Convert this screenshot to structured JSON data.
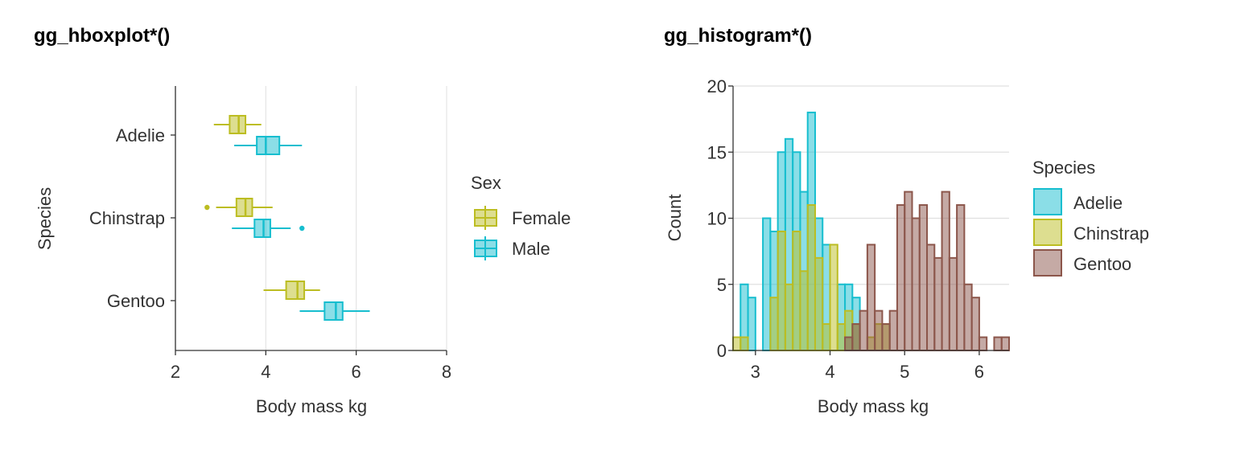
{
  "chart_data": [
    {
      "type": "boxplot",
      "title": "gg_hboxplot*()",
      "orientation": "horizontal",
      "xlabel": "Body mass kg",
      "ylabel": "Species",
      "xlim": [
        2,
        8
      ],
      "xticks": [
        "2",
        "4",
        "6",
        "8"
      ],
      "categories": [
        "Adelie",
        "Chinstrap",
        "Gentoo"
      ],
      "legend": {
        "title": "Sex",
        "placement": "right",
        "entries": [
          "Female",
          "Male"
        ]
      },
      "series": [
        {
          "name": "Female",
          "color": "#bcbd22",
          "boxes": [
            {
              "category": "Adelie",
              "min": 2.85,
              "q1": 3.2,
              "median": 3.4,
              "q3": 3.55,
              "max": 3.9,
              "outliers": []
            },
            {
              "category": "Chinstrap",
              "min": 2.9,
              "q1": 3.35,
              "median": 3.55,
              "q3": 3.7,
              "max": 4.15,
              "outliers": [
                2.7
              ]
            },
            {
              "category": "Gentoo",
              "min": 3.95,
              "q1": 4.45,
              "median": 4.7,
              "q3": 4.85,
              "max": 5.2,
              "outliers": []
            }
          ]
        },
        {
          "name": "Male",
          "color": "#17becf",
          "boxes": [
            {
              "category": "Adelie",
              "min": 3.3,
              "q1": 3.8,
              "median": 4.0,
              "q3": 4.3,
              "max": 4.8,
              "outliers": []
            },
            {
              "category": "Chinstrap",
              "min": 3.25,
              "q1": 3.75,
              "median": 3.95,
              "q3": 4.1,
              "max": 4.55,
              "outliers": [
                4.8
              ]
            },
            {
              "category": "Gentoo",
              "min": 4.75,
              "q1": 5.3,
              "median": 5.55,
              "q3": 5.7,
              "max": 6.3,
              "outliers": []
            }
          ]
        }
      ]
    },
    {
      "type": "histogram",
      "title": "gg_histogram*()",
      "xlabel": "Body mass kg",
      "ylabel": "Count",
      "xlim": [
        2.7,
        6.4
      ],
      "ylim": [
        0,
        20
      ],
      "xticks": [
        "3",
        "4",
        "5",
        "6"
      ],
      "yticks": [
        "0",
        "5",
        "10",
        "15",
        "20"
      ],
      "bin_start": 2.7,
      "bin_width": 0.1,
      "legend": {
        "title": "Species",
        "placement": "right",
        "entries": [
          "Adelie",
          "Chinstrap",
          "Gentoo"
        ]
      },
      "series": [
        {
          "name": "Adelie",
          "color": "#17becf",
          "counts": [
            0,
            5,
            4,
            0,
            10,
            9,
            15,
            16,
            15,
            12,
            18,
            10,
            8,
            0,
            5,
            5,
            4
          ]
        },
        {
          "name": "Chinstrap",
          "color": "#bcbd22",
          "counts": [
            1,
            1,
            0,
            0,
            0,
            4,
            9,
            5,
            9,
            6,
            11,
            7,
            2,
            8,
            2,
            3,
            2,
            0,
            1,
            2,
            2
          ]
        },
        {
          "name": "Gentoo",
          "color": "#8c564b",
          "counts": [
            0,
            0,
            0,
            0,
            0,
            0,
            0,
            0,
            0,
            0,
            0,
            0,
            0,
            0,
            0,
            1,
            2,
            3,
            8,
            3,
            2,
            3,
            11,
            12,
            10,
            11,
            8,
            7,
            12,
            7,
            11,
            5,
            4,
            1,
            0,
            1,
            1
          ]
        }
      ]
    }
  ]
}
